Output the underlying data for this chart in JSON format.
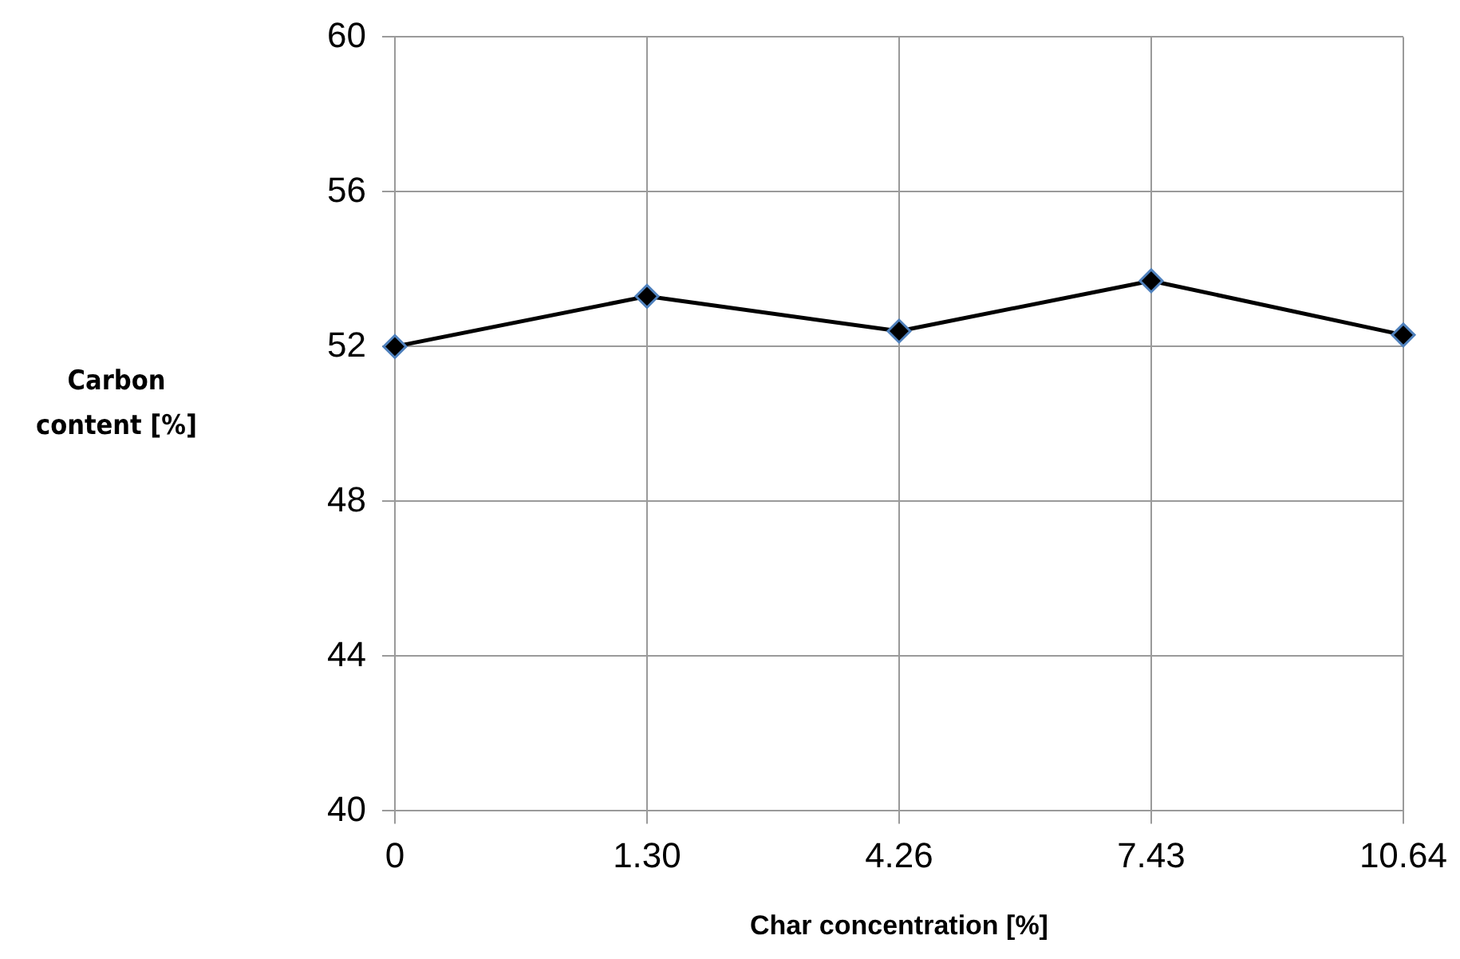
{
  "chart_data": {
    "type": "line",
    "xlabel": "Char concentration [%]",
    "ylabel": "Carbon content [%]",
    "categories": [
      "0",
      "1.30",
      "4.26",
      "7.43",
      "10.64"
    ],
    "series": [
      {
        "color": "#000000",
        "values": [
          52.0,
          53.3,
          52.4,
          53.7,
          52.3
        ]
      }
    ],
    "ylim": [
      40,
      60
    ],
    "yticks": [
      40,
      44,
      48,
      52,
      56,
      60
    ],
    "grid": true,
    "legend": false,
    "marker": "diamond",
    "line_style": "solid"
  }
}
